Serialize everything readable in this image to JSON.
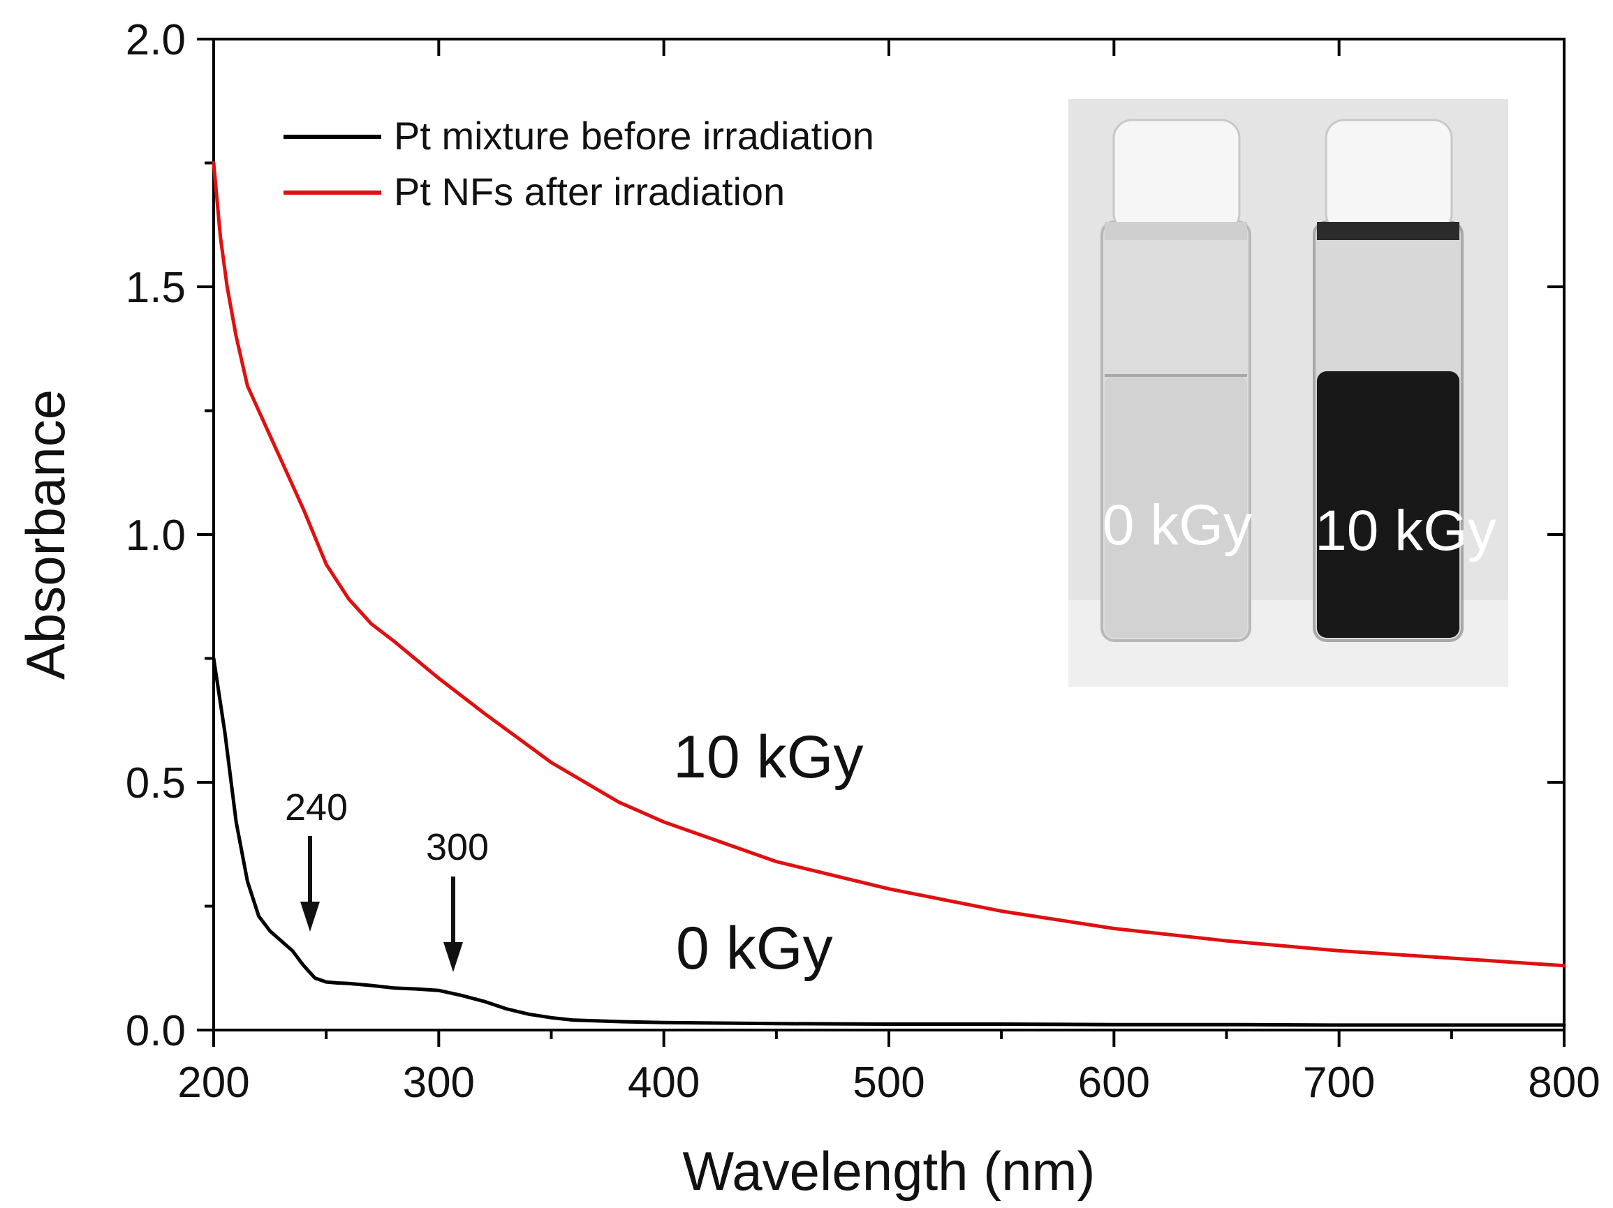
{
  "chart_data": {
    "type": "line",
    "xlabel": "Wavelength (nm)",
    "ylabel": "Absorbance",
    "xlim": [
      200,
      800
    ],
    "ylim": [
      0.0,
      2.0
    ],
    "x_ticks": [
      "200",
      "300",
      "400",
      "500",
      "600",
      "700",
      "800"
    ],
    "y_ticks": [
      "0.0",
      "0.5",
      "1.0",
      "1.5",
      "2.0"
    ],
    "x_tick_values": [
      200,
      300,
      400,
      500,
      600,
      700,
      800
    ],
    "y_tick_values": [
      0.0,
      0.5,
      1.0,
      1.5,
      2.0
    ],
    "legend_position": "top-left",
    "series": [
      {
        "name": "Pt mixture before irradiation",
        "color": "#000000",
        "x": [
          200,
          205,
          210,
          215,
          220,
          225,
          230,
          235,
          240,
          245,
          250,
          255,
          260,
          270,
          280,
          290,
          300,
          310,
          320,
          330,
          340,
          350,
          360,
          380,
          400,
          450,
          500,
          550,
          600,
          650,
          700,
          750,
          800
        ],
        "y": [
          0.75,
          0.6,
          0.42,
          0.3,
          0.23,
          0.2,
          0.18,
          0.16,
          0.13,
          0.105,
          0.097,
          0.095,
          0.094,
          0.09,
          0.085,
          0.083,
          0.08,
          0.07,
          0.058,
          0.043,
          0.032,
          0.025,
          0.02,
          0.017,
          0.015,
          0.013,
          0.012,
          0.012,
          0.011,
          0.011,
          0.01,
          0.01,
          0.01
        ]
      },
      {
        "name": "Pt NFs after irradiation",
        "color": "#e01010",
        "x": [
          200,
          203,
          206,
          210,
          215,
          220,
          230,
          240,
          250,
          260,
          270,
          280,
          300,
          320,
          350,
          380,
          400,
          450,
          500,
          550,
          600,
          650,
          700,
          750,
          800
        ],
        "y": [
          1.75,
          1.6,
          1.5,
          1.4,
          1.3,
          1.25,
          1.15,
          1.05,
          0.94,
          0.87,
          0.82,
          0.785,
          0.71,
          0.64,
          0.54,
          0.46,
          0.42,
          0.34,
          0.285,
          0.24,
          0.205,
          0.18,
          0.16,
          0.145,
          0.13
        ]
      }
    ],
    "annotations": [
      {
        "text": "240",
        "x": 240,
        "y": 0.18
      },
      {
        "text": "300",
        "x": 300,
        "y": 0.1
      },
      {
        "text": "10 kGy",
        "x": 480,
        "y": 0.55
      },
      {
        "text": "0 kGy",
        "x": 470,
        "y": 0.16
      }
    ]
  },
  "inset_photo": {
    "left_vial_label": "0 kGy",
    "right_vial_label": "10 kGy"
  }
}
